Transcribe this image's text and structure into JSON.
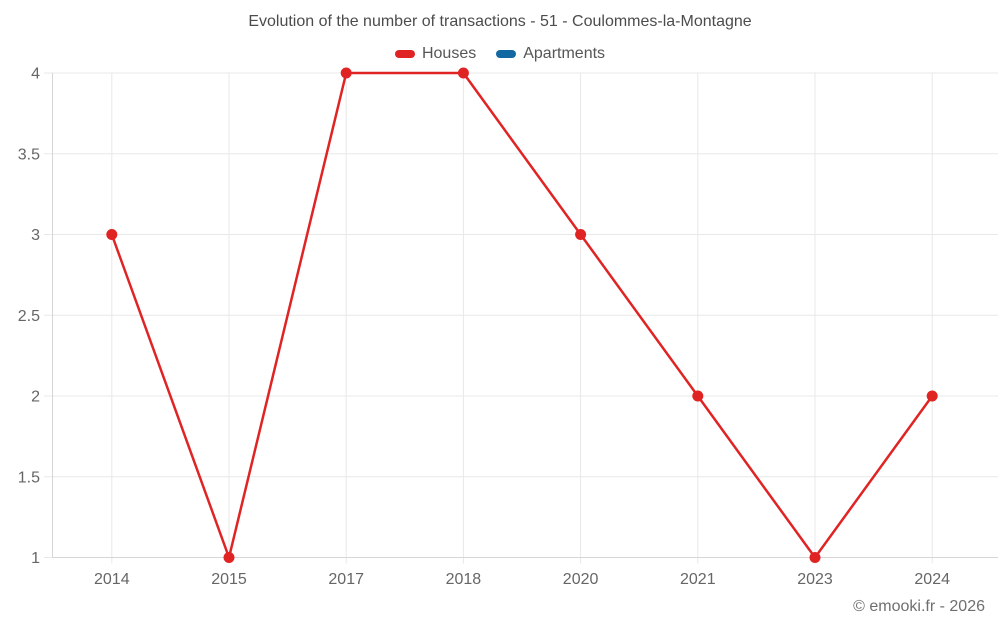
{
  "chart_data": {
    "type": "line",
    "title": "Evolution of the number of transactions - 51 - Coulommes-la-Montagne",
    "categories": [
      "2014",
      "2015",
      "2017",
      "2018",
      "2020",
      "2021",
      "2023",
      "2024"
    ],
    "series": [
      {
        "name": "Houses",
        "color": "#e02424",
        "values": [
          3,
          1,
          4,
          4,
          3,
          2,
          1,
          2
        ]
      },
      {
        "name": "Apartments",
        "color": "#1269a2",
        "values": [
          null,
          null,
          null,
          null,
          null,
          null,
          null,
          null
        ]
      }
    ],
    "yticks": [
      1,
      1.5,
      2,
      2.5,
      3,
      3.5,
      4
    ],
    "ylim": [
      1,
      4
    ],
    "xlabel": "",
    "ylabel": "",
    "grid": true,
    "legend_position": "top",
    "marker": "circle"
  },
  "colors": {
    "grid": "#e8e8e8",
    "axis": "#d6d6d6",
    "tick_text": "#666666",
    "title_text": "#4c4c4c"
  },
  "footer": {
    "credit": "© emooki.fr - 2026"
  }
}
